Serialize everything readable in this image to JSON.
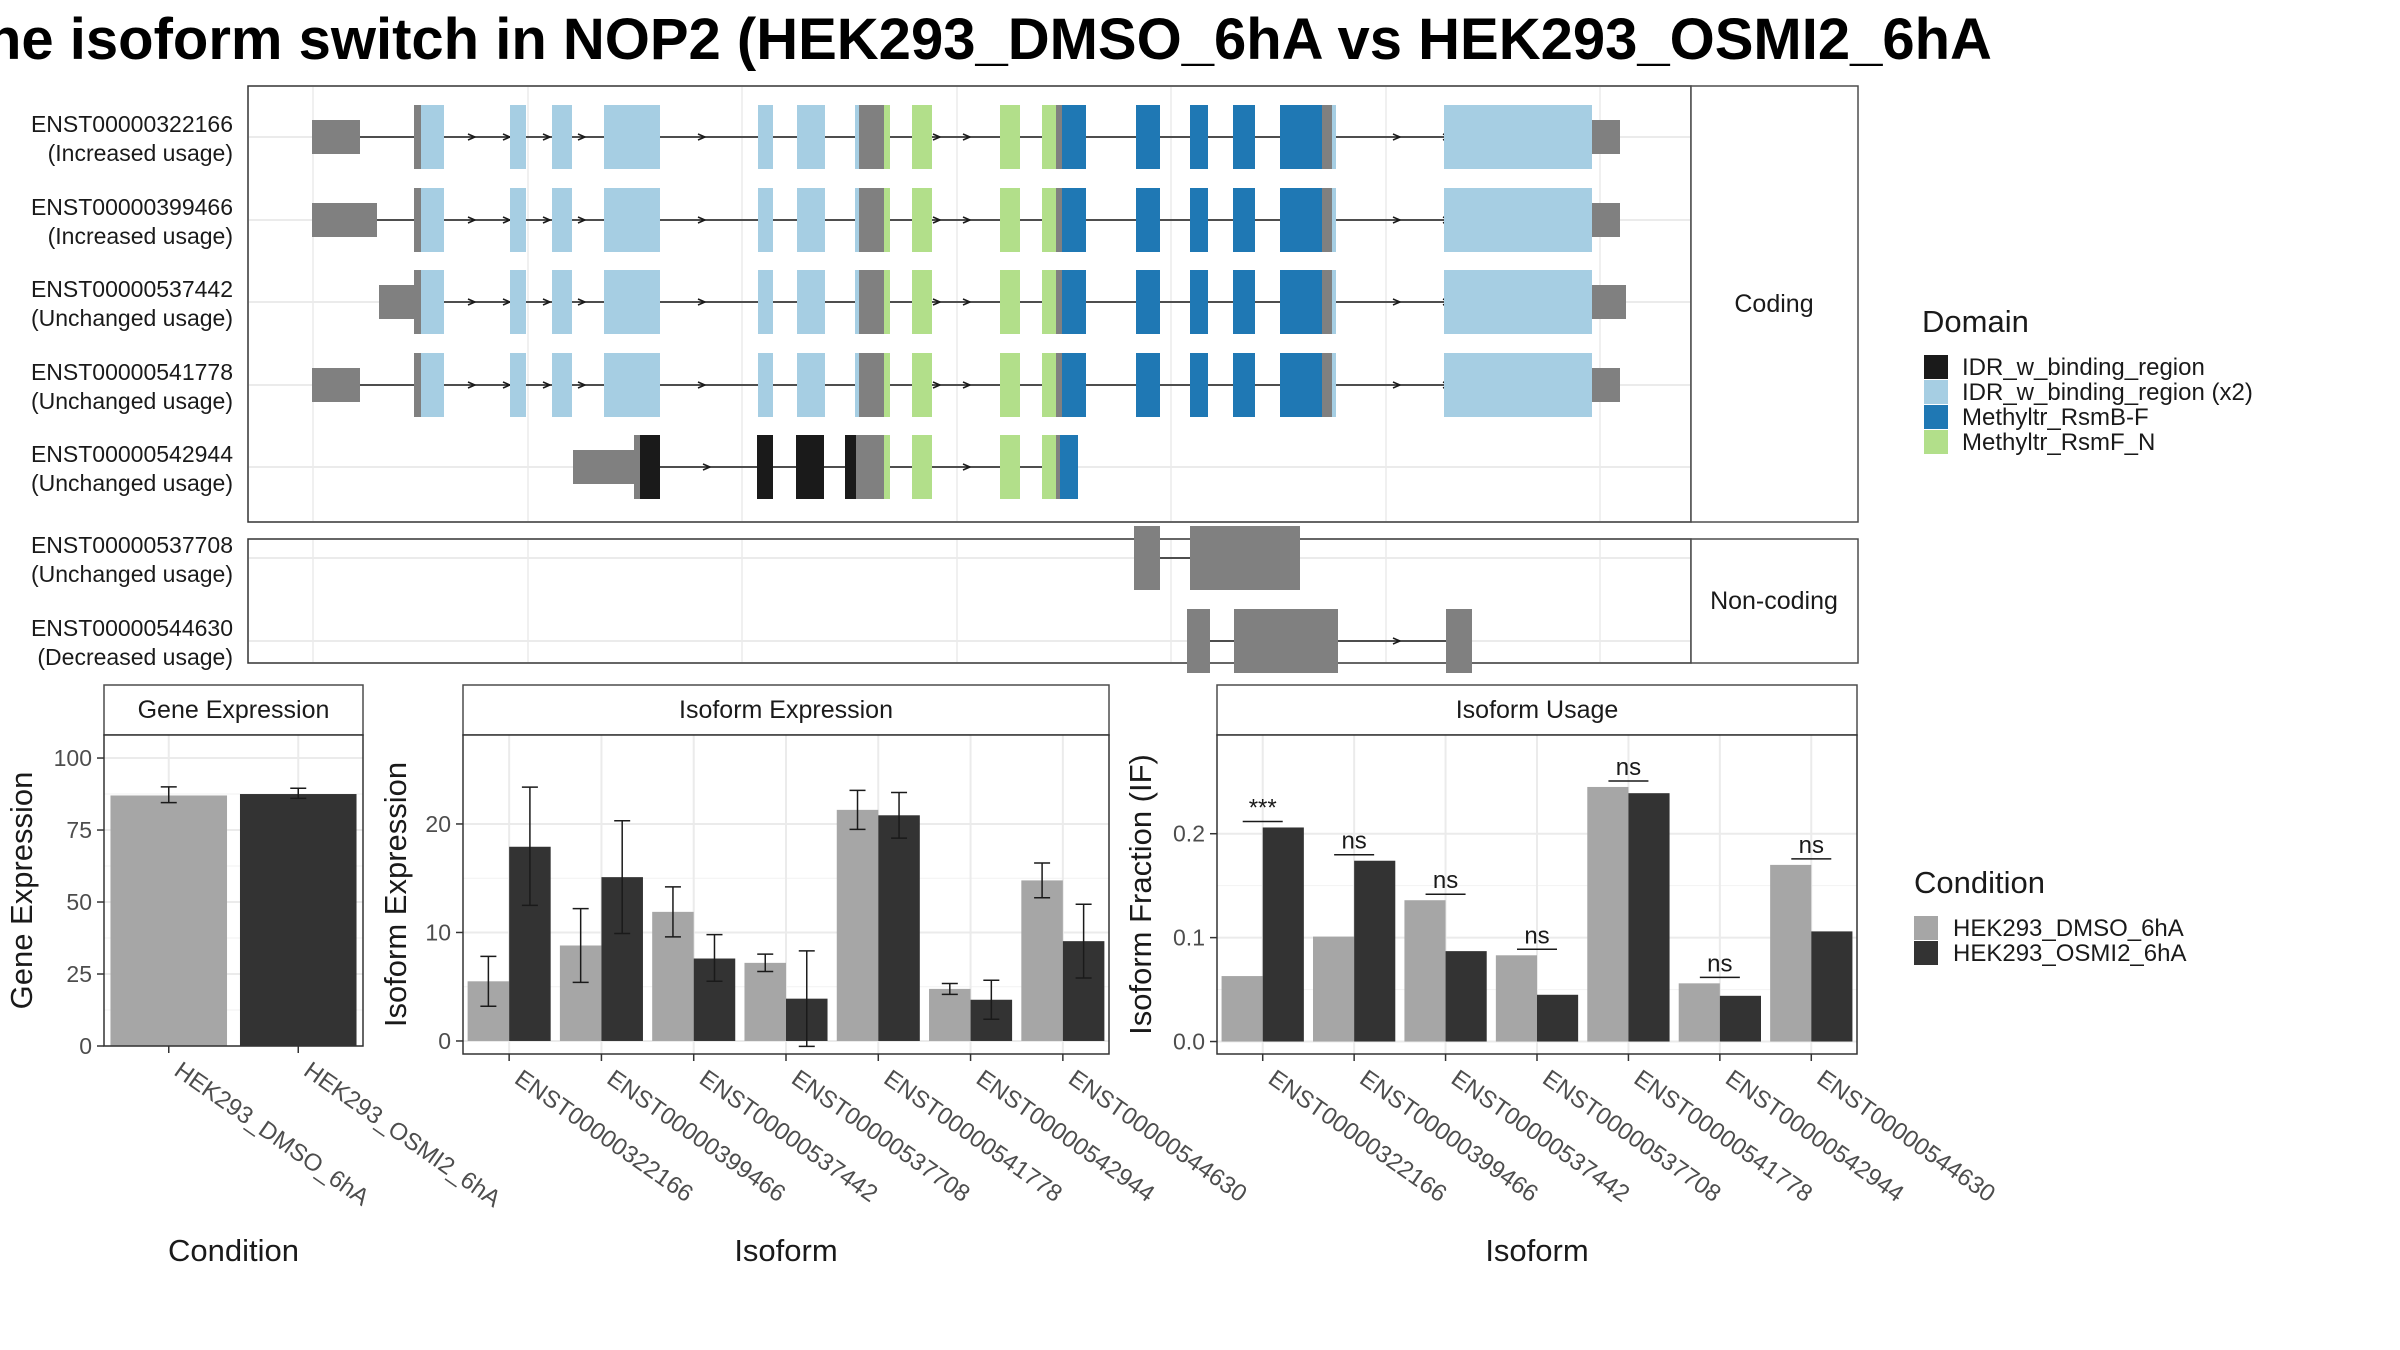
{
  "title": "he isoform switch in NOP2 (HEK293_DMSO_6hA vs HEK293_OSMI2_6hA",
  "colors": {
    "IDR_w_binding_region": "#1a1a1a",
    "IDR_w_binding_region (x2)": "#a6cee3",
    "Methyltr_RsmB-F": "#1f78b4",
    "Methyltr_RsmF_N": "#b2df8a",
    "utr": "#808080",
    "dmso": "#a6a6a6",
    "osmi": "#333333"
  },
  "structure": {
    "facets": [
      "Coding",
      "Non-coding"
    ],
    "transcripts": [
      {
        "id": "ENST00000322166",
        "usage": "(Increased usage)",
        "group": "Coding"
      },
      {
        "id": "ENST00000399466",
        "usage": "(Increased usage)",
        "group": "Coding"
      },
      {
        "id": "ENST00000537442",
        "usage": "(Unchanged usage)",
        "group": "Coding"
      },
      {
        "id": "ENST00000541778",
        "usage": "(Unchanged usage)",
        "group": "Coding"
      },
      {
        "id": "ENST00000542944",
        "usage": "(Unchanged usage)",
        "group": "Coding"
      },
      {
        "id": "ENST00000537708",
        "usage": "(Unchanged usage)",
        "group": "Non-coding"
      },
      {
        "id": "ENST00000544630",
        "usage": "(Decreased usage)",
        "group": "Non-coding"
      }
    ]
  },
  "legend_domain": {
    "title": "Domain",
    "items": [
      "IDR_w_binding_region",
      "IDR_w_binding_region (x2)",
      "Methyltr_RsmB-F",
      "Methyltr_RsmF_N"
    ]
  },
  "legend_condition": {
    "title": "Condition",
    "items": [
      "HEK293_DMSO_6hA",
      "HEK293_OSMI2_6hA"
    ]
  },
  "chart_data": [
    {
      "type": "bar",
      "title": "Gene Expression",
      "xlabel": "Condition",
      "ylabel": "Gene Expression",
      "categories": [
        "HEK293_DMSO_6hA",
        "HEK293_OSMI2_6hA"
      ],
      "values": [
        87,
        87.5
      ],
      "errors": [
        [
          84.5,
          90
        ],
        [
          86,
          89.5
        ]
      ],
      "ylim": [
        0,
        108
      ],
      "yticks": [
        0,
        25,
        50,
        75,
        100
      ]
    },
    {
      "type": "bar",
      "title": "Isoform Expression",
      "xlabel": "Isoform",
      "ylabel": "Isoform Expression",
      "categories": [
        "ENST00000322166",
        "ENST00000399466",
        "ENST00000537442",
        "ENST00000537708",
        "ENST00000541778",
        "ENST00000542944",
        "ENST00000544630"
      ],
      "series": [
        {
          "name": "HEK293_DMSO_6hA",
          "values": [
            5.5,
            8.8,
            11.9,
            7.2,
            21.3,
            4.8,
            14.8
          ],
          "errors": [
            [
              3.2,
              7.8
            ],
            [
              5.4,
              12.2
            ],
            [
              9.6,
              14.2
            ],
            [
              6.4,
              8.0
            ],
            [
              19.5,
              23.1
            ],
            [
              4.3,
              5.3
            ],
            [
              13.2,
              16.4
            ]
          ]
        },
        {
          "name": "HEK293_OSMI2_6hA",
          "values": [
            17.9,
            15.1,
            7.6,
            3.9,
            20.8,
            3.8,
            9.2
          ],
          "errors": [
            [
              12.5,
              23.4
            ],
            [
              9.9,
              20.3
            ],
            [
              5.5,
              9.8
            ],
            [
              -0.5,
              8.3
            ],
            [
              18.7,
              22.9
            ],
            [
              2.0,
              5.6
            ],
            [
              5.8,
              12.6
            ]
          ]
        }
      ],
      "ylim": [
        -1.2,
        28.2
      ],
      "yticks": [
        0,
        10,
        20
      ]
    },
    {
      "type": "bar",
      "title": "Isoform Usage",
      "xlabel": "Isoform",
      "ylabel": "Isoform Fraction (IF)",
      "categories": [
        "ENST00000322166",
        "ENST00000399466",
        "ENST00000537442",
        "ENST00000537708",
        "ENST00000541778",
        "ENST00000542944",
        "ENST00000544630"
      ],
      "series": [
        {
          "name": "HEK293_DMSO_6hA",
          "values": [
            0.063,
            0.101,
            0.136,
            0.083,
            0.245,
            0.056,
            0.17
          ]
        },
        {
          "name": "HEK293_OSMI2_6hA",
          "values": [
            0.206,
            0.174,
            0.087,
            0.045,
            0.239,
            0.044,
            0.106
          ]
        }
      ],
      "annotations": [
        "***",
        "ns",
        "ns",
        "ns",
        "ns",
        "ns",
        "ns"
      ],
      "ylim": [
        -0.012,
        0.295
      ],
      "yticks": [
        "0.0",
        "0.1",
        "0.2"
      ]
    }
  ]
}
